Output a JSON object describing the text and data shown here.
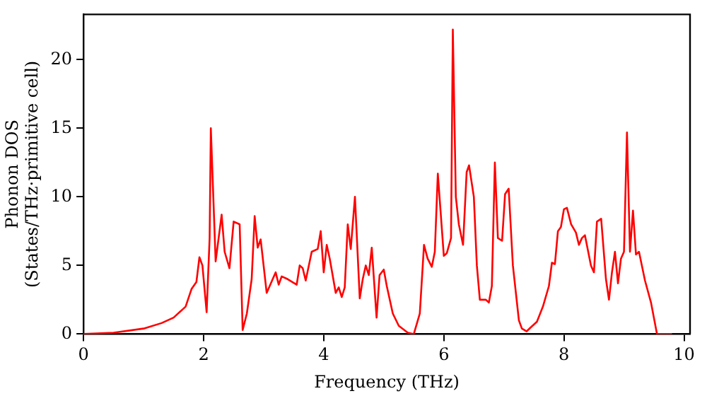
{
  "chart_data": {
    "type": "line",
    "xlabel": "Frequency (THz)",
    "ylabel": "Phonon DOS\n(States/THz·primitive cell)",
    "xlim": [
      0,
      10.1
    ],
    "ylim": [
      0,
      23.3
    ],
    "xticks": [
      0,
      2,
      4,
      6,
      8,
      10
    ],
    "yticks": [
      0,
      5,
      10,
      15,
      20
    ],
    "grid": false,
    "legend": false,
    "marker": "none",
    "line_style": "solid",
    "series": [
      {
        "color": "#ff0000",
        "x": [
          0,
          0.5,
          1.0,
          1.3,
          1.5,
          1.7,
          1.8,
          1.88,
          1.93,
          1.98,
          2.05,
          2.1,
          2.12,
          2.2,
          2.3,
          2.35,
          2.43,
          2.5,
          2.6,
          2.65,
          2.72,
          2.8,
          2.85,
          2.9,
          2.95,
          3.05,
          3.15,
          3.2,
          3.25,
          3.3,
          3.4,
          3.55,
          3.6,
          3.65,
          3.7,
          3.8,
          3.9,
          3.95,
          4.0,
          4.05,
          4.1,
          4.2,
          4.25,
          4.3,
          4.35,
          4.4,
          4.45,
          4.52,
          4.6,
          4.65,
          4.7,
          4.75,
          4.8,
          4.88,
          4.93,
          5.0,
          5.05,
          5.15,
          5.25,
          5.4,
          5.5,
          5.6,
          5.67,
          5.73,
          5.8,
          5.85,
          5.9,
          6.0,
          6.05,
          6.12,
          6.15,
          6.2,
          6.25,
          6.32,
          6.38,
          6.42,
          6.5,
          6.55,
          6.6,
          6.7,
          6.75,
          6.8,
          6.85,
          6.9,
          6.97,
          7.02,
          7.08,
          7.15,
          7.25,
          7.3,
          7.38,
          7.45,
          7.55,
          7.65,
          7.75,
          7.8,
          7.85,
          7.9,
          7.95,
          8.0,
          8.05,
          8.12,
          8.2,
          8.25,
          8.3,
          8.35,
          8.45,
          8.5,
          8.55,
          8.62,
          8.7,
          8.75,
          8.8,
          8.85,
          8.9,
          8.95,
          9.0,
          9.05,
          9.1,
          9.15,
          9.2,
          9.25,
          9.35,
          9.45,
          9.55,
          9.8
        ],
        "values": [
          0,
          0.1,
          0.4,
          0.8,
          1.2,
          2.0,
          3.3,
          3.8,
          5.6,
          5.0,
          1.6,
          7,
          15,
          5.3,
          8.7,
          6,
          4.8,
          8.2,
          8,
          0.3,
          1.5,
          4,
          8.6,
          6.3,
          6.9,
          3,
          4,
          4.5,
          3.6,
          4.2,
          4,
          3.6,
          5,
          4.8,
          3.9,
          6,
          6.2,
          7.5,
          4.5,
          6.5,
          5.5,
          3,
          3.4,
          2.7,
          3.4,
          8,
          6.2,
          10,
          2.6,
          4,
          5,
          4.3,
          6.3,
          1.2,
          4.3,
          4.7,
          3.5,
          1.5,
          0.6,
          0.1,
          0,
          1.5,
          6.5,
          5.5,
          4.9,
          6,
          11.7,
          5.7,
          5.9,
          7,
          22.2,
          10,
          8,
          6.5,
          11.8,
          12.3,
          10,
          5,
          2.5,
          2.5,
          2.3,
          3.5,
          12.5,
          7,
          6.8,
          10.2,
          10.6,
          5,
          1,
          0.4,
          0.2,
          0.5,
          0.9,
          2,
          3.5,
          5.2,
          5.1,
          7.5,
          7.8,
          9.1,
          9.2,
          8,
          7.4,
          6.5,
          7,
          7.2,
          5,
          4.5,
          8.2,
          8.4,
          4,
          2.5,
          4.5,
          6,
          3.7,
          5.5,
          6,
          14.7,
          6,
          9,
          5.8,
          6,
          3.9,
          2.3,
          0,
          0
        ]
      }
    ]
  }
}
